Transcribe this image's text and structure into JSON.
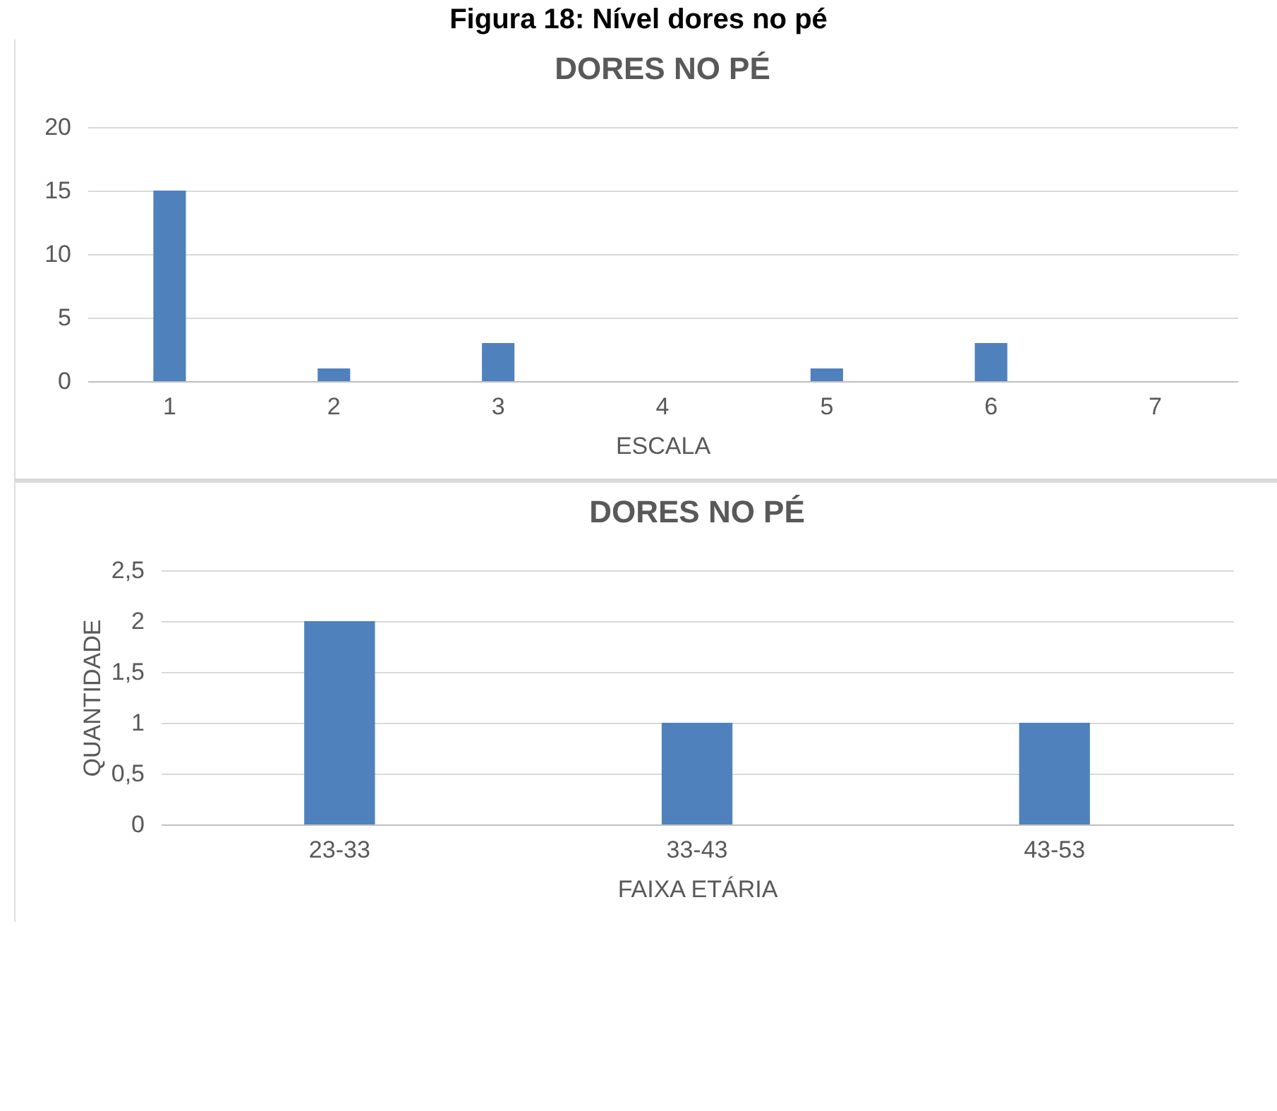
{
  "chart_data": [
    {
      "type": "bar",
      "title": "DORES NO PÉ",
      "annotations": [
        "Figura 18: Nível dores no pé"
      ],
      "xlabel": "ESCALA",
      "categories": [
        "1",
        "2",
        "3",
        "4",
        "5",
        "6",
        "7"
      ],
      "values": [
        15,
        1,
        3,
        0,
        1,
        3,
        0
      ],
      "color": "#4f81bd",
      "ylim": [
        0,
        20
      ],
      "yticks": [
        0,
        5,
        10,
        15,
        20
      ],
      "grid": "y"
    },
    {
      "type": "bar",
      "title": "DORES NO PÉ",
      "xlabel": "FAIXA ETÁRIA",
      "ylabel": "QUANTIDADE",
      "categories": [
        "23-33",
        "33-43",
        "43-53"
      ],
      "values": [
        2,
        1,
        1
      ],
      "color": "#4f81bd",
      "ylim": [
        0,
        2.5
      ],
      "yticks": [
        0,
        {
          "value": 0.5,
          "label": "0,5"
        },
        1,
        {
          "value": 1.5,
          "label": "1,5"
        },
        2,
        {
          "value": 2.5,
          "label": "2,5"
        }
      ],
      "grid": "y"
    }
  ]
}
